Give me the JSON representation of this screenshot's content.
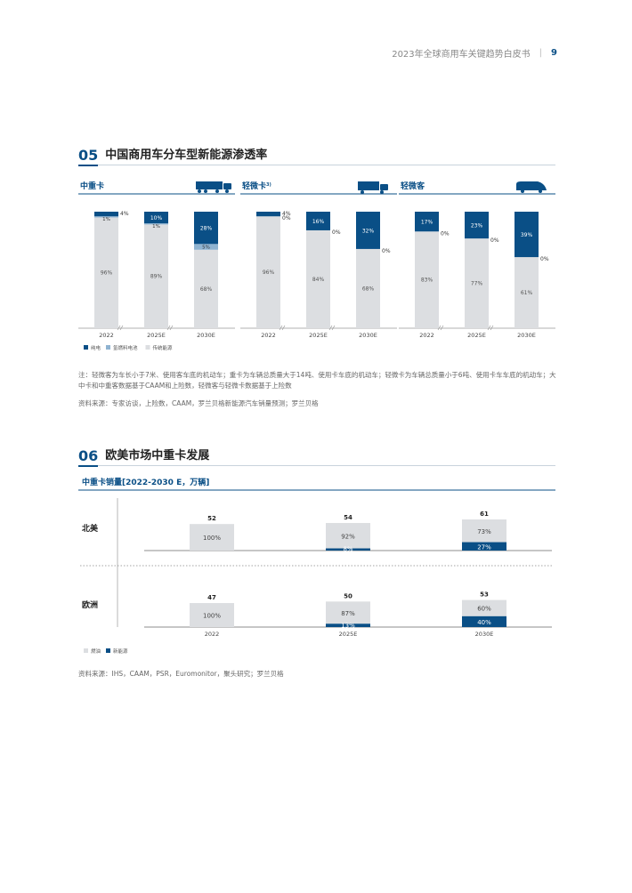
{
  "header": {
    "title": "2023年全球商用车关键趋势白皮书",
    "separator": "|",
    "page_number": "9"
  },
  "section05": {
    "number": "05",
    "title": "中国商用车分车型新能源渗透率",
    "note": "注：轻微客为车长小于7米、使用客车底的机动车；重卡为车辆总质量大于14吨、使用卡车底的机动车；轻微卡为车辆总质量小于6吨、使用卡车车底的机动车；大中卡和中重客数据基于CAAM和上险数，轻微客与轻微卡数据基于上险数",
    "source": "资料来源：专家访谈，上险数，CAAM，罗兰贝格新能源汽车销量预测；罗兰贝格"
  },
  "section06": {
    "number": "06",
    "title": "欧美市场中重卡发展",
    "source": "资料来源：IHS，CAAM，PSR，Euromonitor，聚头研究；罗兰贝格"
  },
  "colors": {
    "bev": "#0a4f86",
    "fcev": "#8fb3d1",
    "ice": "#dcdee1",
    "accent": "#0a4f86"
  },
  "chart_data": [
    {
      "type": "bar",
      "stacked": true,
      "legend": [
        "纯电",
        "氢燃料电池",
        "传统能源"
      ],
      "legend_position": "bottom-left",
      "panels": [
        {
          "title": "中重卡",
          "superscript": "",
          "icon": "truck-icon",
          "categories": [
            "2022",
            "2025E",
            "2030E"
          ],
          "series": [
            {
              "name": "纯电",
              "values": [
                4,
                10,
                28
              ],
              "labels": [
                "4%",
                "10%",
                "28%"
              ]
            },
            {
              "name": "氢燃料电池",
              "values": [
                1,
                1,
                5
              ],
              "labels": [
                "1%",
                "1%",
                "5%"
              ]
            },
            {
              "name": "传统能源",
              "values": [
                96,
                89,
                68
              ],
              "labels": [
                "96%",
                "89%",
                "68%"
              ]
            }
          ]
        },
        {
          "title": "轻微卡",
          "superscript": "3)",
          "icon": "van-icon",
          "categories": [
            "2022",
            "2025E",
            "2030E"
          ],
          "series": [
            {
              "name": "纯电",
              "values": [
                4,
                16,
                32
              ],
              "labels": [
                "4%",
                "16%",
                "32%"
              ]
            },
            {
              "name": "氢燃料电池",
              "values": [
                0,
                0,
                0
              ],
              "labels": [
                "0%",
                "0%",
                "0%"
              ]
            },
            {
              "name": "传统能源",
              "values": [
                96,
                84,
                68
              ],
              "labels": [
                "96%",
                "84%",
                "68%"
              ]
            }
          ]
        },
        {
          "title": "轻微客",
          "superscript": "",
          "icon": "minibus-icon",
          "categories": [
            "2022",
            "2025E",
            "2030E"
          ],
          "series": [
            {
              "name": "纯电",
              "values": [
                17,
                23,
                39
              ],
              "labels": [
                "17%",
                "23%",
                "39%"
              ]
            },
            {
              "name": "氢燃料电池",
              "values": [
                0,
                0,
                0
              ],
              "labels": [
                "0%",
                "0%",
                "0%"
              ]
            },
            {
              "name": "传统能源",
              "values": [
                83,
                77,
                61
              ],
              "labels": [
                "83%",
                "77%",
                "61%"
              ]
            }
          ]
        }
      ]
    },
    {
      "type": "bar",
      "stacked": true,
      "title": "中重卡销量[2022-2030 E，万辆]",
      "categories": [
        "2022",
        "2025E",
        "2030E"
      ],
      "legend": [
        "燃油",
        "新能源"
      ],
      "legend_position": "bottom-left",
      "regions": [
        {
          "name": "北美",
          "totals": [
            52,
            54,
            61
          ],
          "series": [
            {
              "name": "燃油",
              "values": [
                100,
                92,
                73
              ],
              "labels": [
                "100%",
                "92%",
                "73%"
              ]
            },
            {
              "name": "新能源",
              "values": [
                0,
                8,
                27
              ],
              "labels": [
                "",
                "8%",
                "27%"
              ]
            }
          ]
        },
        {
          "name": "欧洲",
          "totals": [
            47,
            50,
            53
          ],
          "series": [
            {
              "name": "燃油",
              "values": [
                100,
                87,
                60
              ],
              "labels": [
                "100%",
                "87%",
                "60%"
              ]
            },
            {
              "name": "新能源",
              "values": [
                0,
                13,
                40
              ],
              "labels": [
                "",
                "13%",
                "40%"
              ]
            }
          ]
        }
      ]
    }
  ]
}
